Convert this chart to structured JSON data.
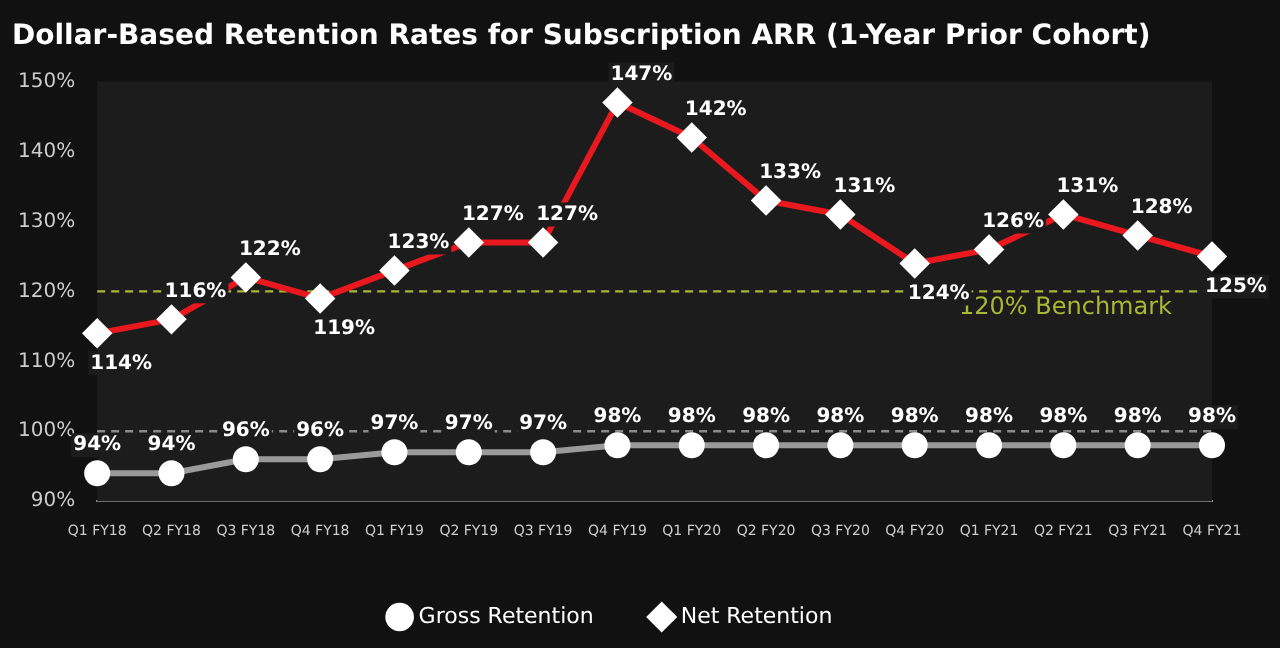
{
  "chart_data": {
    "type": "line",
    "title": "Dollar-Based Retention Rates for Subscription ARR (1-Year Prior Cohort)",
    "categories": [
      "Q1 FY18",
      "Q2 FY18",
      "Q3 FY18",
      "Q4 FY18",
      "Q1 FY19",
      "Q2 FY19",
      "Q3 FY19",
      "Q4 FY19",
      "Q1 FY20",
      "Q2 FY20",
      "Q3 FY20",
      "Q4 FY20",
      "Q1 FY21",
      "Q2 FY21",
      "Q3 FY21",
      "Q4 FY21"
    ],
    "series": [
      {
        "name": "Gross Retention",
        "color": "#9a9a9a",
        "marker": "circle",
        "values": [
          94,
          94,
          96,
          96,
          97,
          97,
          97,
          98,
          98,
          98,
          98,
          98,
          98,
          98,
          98,
          98
        ],
        "value_labels": [
          "94%",
          "94%",
          "96%",
          "96%",
          "97%",
          "97%",
          "97%",
          "98%",
          "98%",
          "98%",
          "98%",
          "98%",
          "98%",
          "98%",
          "98%",
          "98%"
        ]
      },
      {
        "name": "Net Retention",
        "color": "#e8181e",
        "marker": "diamond",
        "values": [
          114,
          116,
          122,
          119,
          123,
          127,
          127,
          147,
          142,
          133,
          131,
          124,
          126,
          131,
          128,
          125
        ],
        "value_labels": [
          "114%",
          "116%",
          "122%",
          "119%",
          "123%",
          "127%",
          "127%",
          "147%",
          "142%",
          "133%",
          "131%",
          "124%",
          "126%",
          "131%",
          "128%",
          "125%"
        ]
      }
    ],
    "ylim": [
      90,
      150
    ],
    "yticks": [
      {
        "value": 90,
        "label": "90%"
      },
      {
        "value": 100,
        "label": "100%"
      },
      {
        "value": 110,
        "label": "110%"
      },
      {
        "value": 120,
        "label": "120%"
      },
      {
        "value": 130,
        "label": "130%"
      },
      {
        "value": 140,
        "label": "140%"
      },
      {
        "value": 150,
        "label": "150%"
      }
    ],
    "ref_lines": [
      {
        "axis": "y",
        "value": 120,
        "label": "120% Benchmark",
        "color": "#a8b832",
        "line_style": "dashed"
      },
      {
        "axis": "y",
        "value": 100,
        "label": null,
        "color": "#8a8a8a",
        "line_style": "dashed"
      }
    ],
    "grid": false,
    "legend": "bottom",
    "line_style": "solid"
  }
}
